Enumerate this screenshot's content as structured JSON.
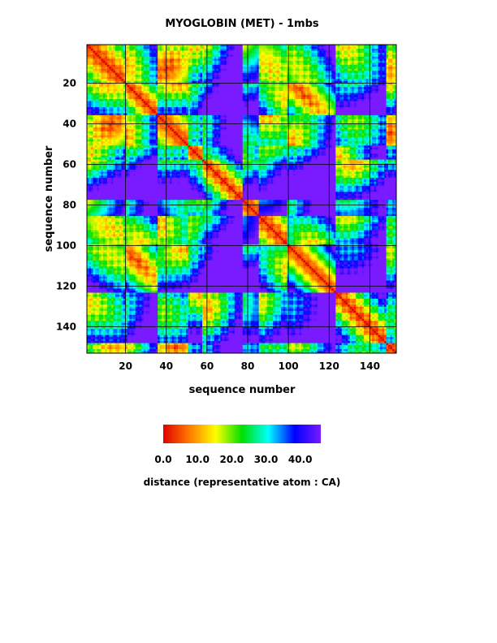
{
  "chart_data": {
    "type": "heatmap",
    "title": "MYOGLOBIN (MET) - 1mbs",
    "xlabel": "sequence number",
    "ylabel": "sequence number",
    "x_range": [
      1,
      153
    ],
    "y_range": [
      1,
      153
    ],
    "y_inverted": true,
    "x_ticks": [
      20,
      40,
      60,
      80,
      100,
      120,
      140
    ],
    "y_ticks": [
      20,
      40,
      60,
      80,
      100,
      120,
      140
    ],
    "grid": true,
    "contours": true,
    "value_name": "distance",
    "colorbar": {
      "label": "distance (representative atom : CA)",
      "min": 0.0,
      "max": 46.0,
      "ticks": [
        "0.0",
        "10.0",
        "20.0",
        "30.0",
        "40.0"
      ],
      "colors": [
        "#e00000",
        "#ff7a00",
        "#ffff00",
        "#00e000",
        "#00ffff",
        "#0000ff",
        "#7a1aff"
      ]
    },
    "helix_boundaries": [
      4,
      20,
      36,
      51,
      58,
      78,
      86,
      100,
      124,
      149
    ]
  }
}
